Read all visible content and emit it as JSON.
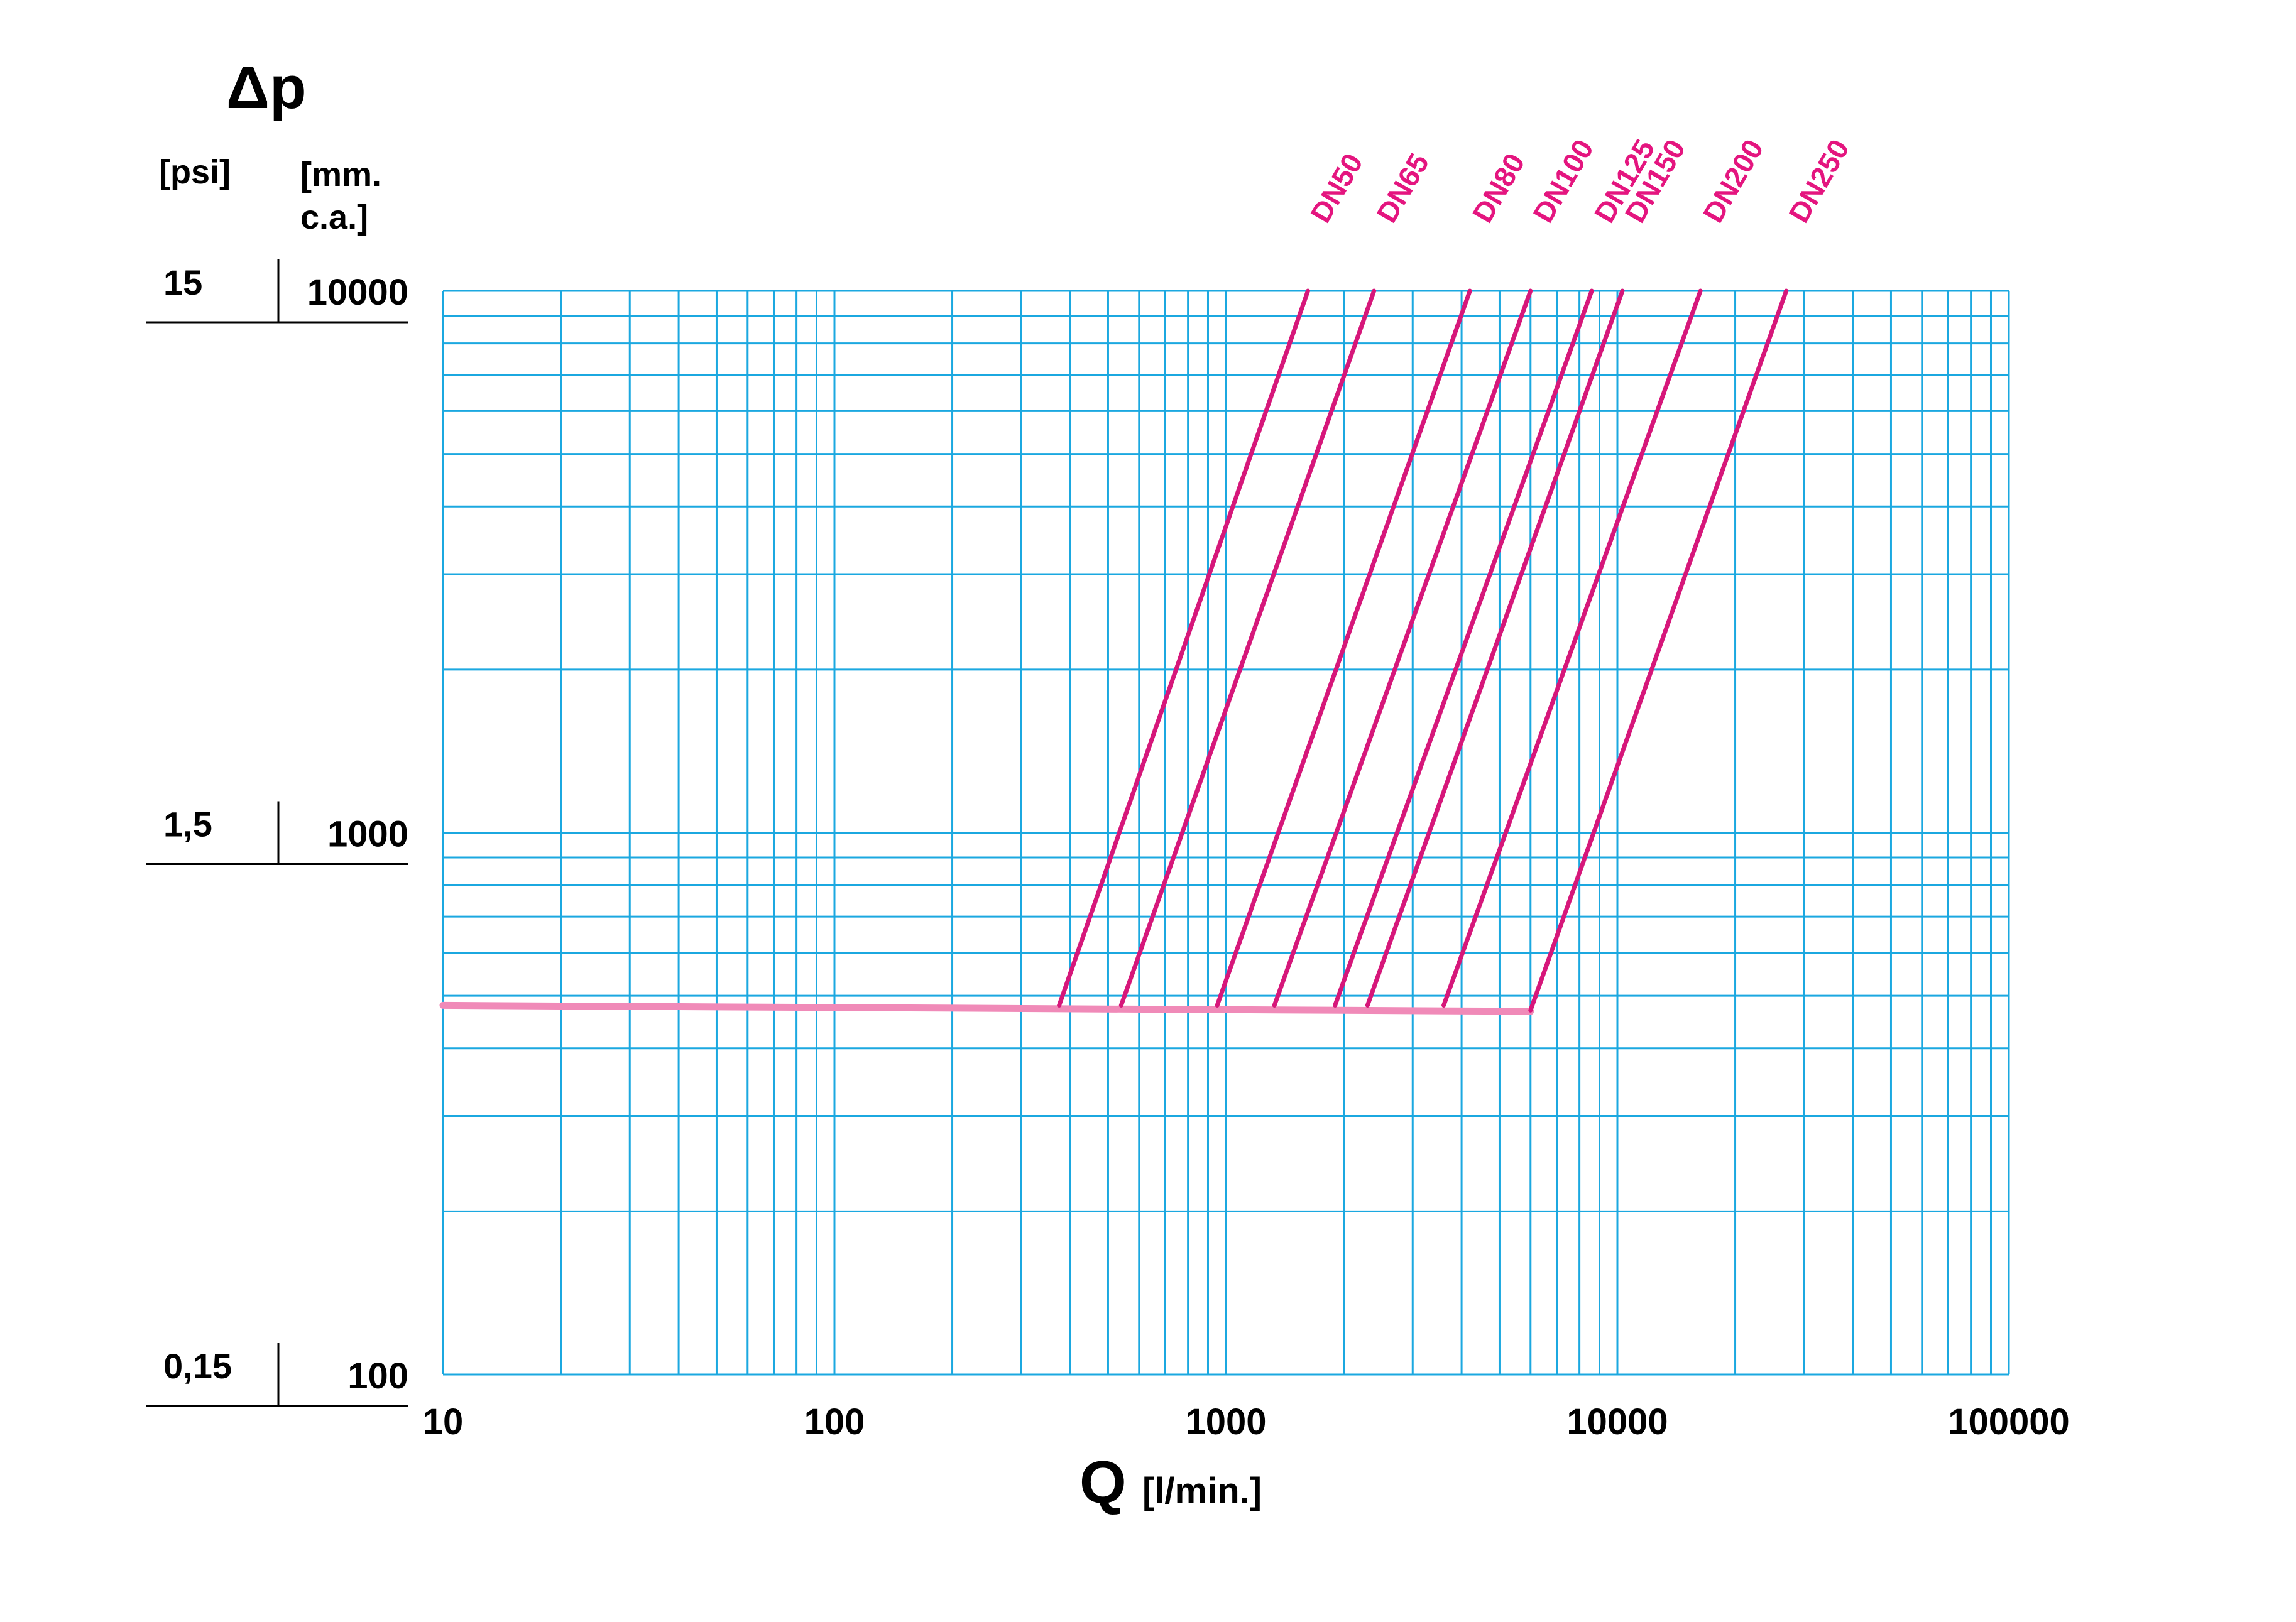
{
  "chart_data": {
    "type": "line",
    "title": "",
    "ylabel_symbol": "Δp",
    "ylabel_units": {
      "psi": "[psi]",
      "mmca_line1": "[mm.",
      "mmca_line2": "c.a.]"
    },
    "xlabel_symbol": "Q",
    "xlabel_unit": "[l/min.]",
    "x_scale": "log",
    "y_scale": "log",
    "xlim": [
      10,
      100000
    ],
    "ylim": [
      100,
      10000
    ],
    "grid": true,
    "x_ticks": [
      {
        "value": 10,
        "label": "10"
      },
      {
        "value": 100,
        "label": "100"
      },
      {
        "value": 1000,
        "label": "1000"
      },
      {
        "value": 10000,
        "label": "10000"
      },
      {
        "value": 100000,
        "label": "100000"
      }
    ],
    "y_ticks": [
      {
        "value": 10000,
        "mm": "10000",
        "psi": "15"
      },
      {
        "value": 1000,
        "mm": "1000",
        "psi": "1,5"
      },
      {
        "value": 100,
        "mm": "100",
        "psi": "0,15"
      }
    ],
    "baseline": {
      "x": [
        10,
        6000
      ],
      "y": [
        480,
        468
      ],
      "color": "#F08AB8"
    },
    "series": [
      {
        "name": "DN50",
        "x": [
          375,
          1620
        ],
        "y": [
          480,
          10000
        ]
      },
      {
        "name": "DN65",
        "x": [
          540,
          2390
        ],
        "y": [
          480,
          10000
        ]
      },
      {
        "name": "DN80",
        "x": [
          950,
          4200
        ],
        "y": [
          480,
          10000
        ]
      },
      {
        "name": "DN100",
        "x": [
          1330,
          6000
        ],
        "y": [
          480,
          10000
        ]
      },
      {
        "name": "DN125",
        "x": [
          1900,
          8600
        ],
        "y": [
          480,
          10000
        ]
      },
      {
        "name": "DN150",
        "x": [
          2300,
          10300
        ],
        "y": [
          480,
          10000
        ]
      },
      {
        "name": "DN200",
        "x": [
          3600,
          16300
        ],
        "y": [
          480,
          10000
        ]
      },
      {
        "name": "DN250",
        "x": [
          6000,
          27000
        ],
        "y": [
          470,
          10000
        ]
      }
    ],
    "colors": {
      "grid": "#1BA8E0",
      "series": "#D6177A",
      "label": "#E4157F"
    }
  }
}
